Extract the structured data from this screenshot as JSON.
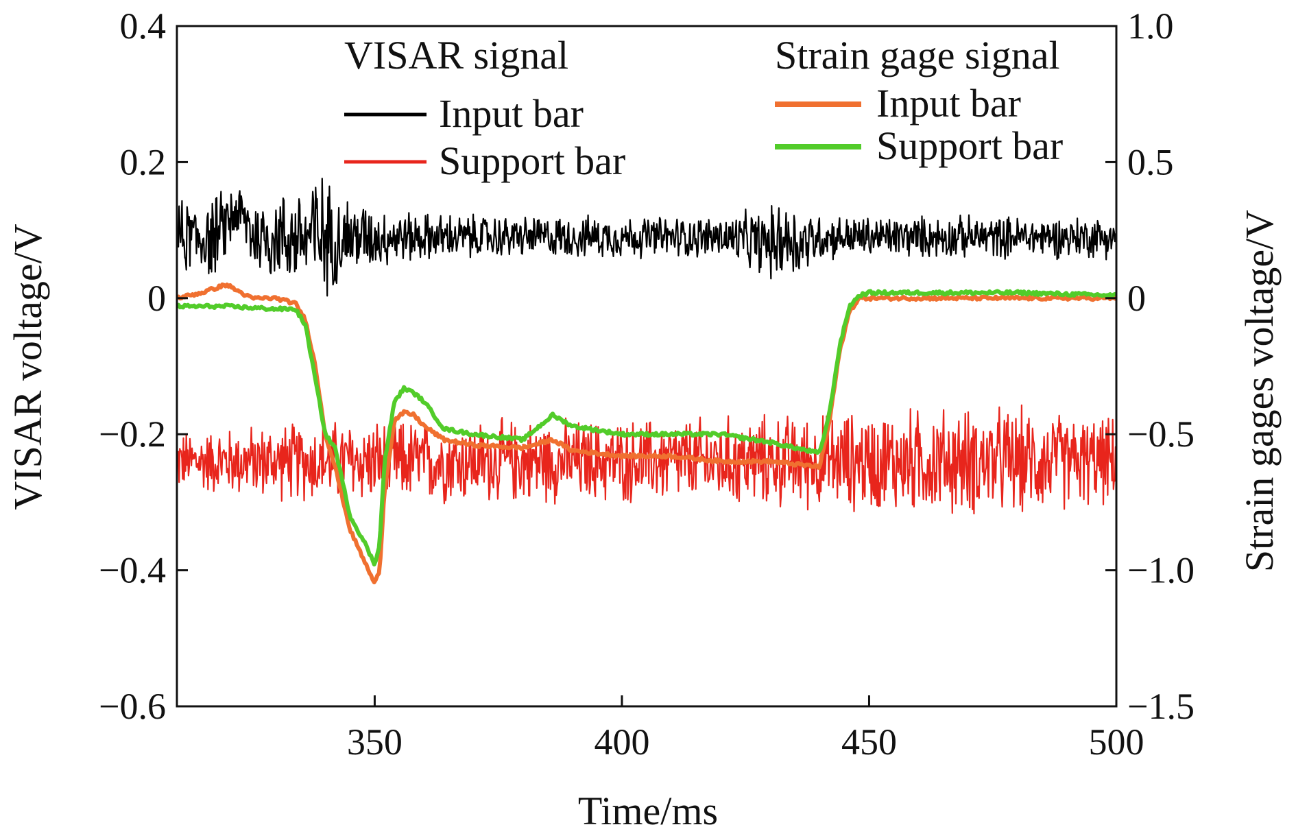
{
  "chart_data": {
    "type": "line",
    "xlabel": "Time/ms",
    "ylabel_left": "VISAR voltage/V",
    "ylabel_right": "Strain gages voltage/V",
    "xlim": [
      310,
      500
    ],
    "ylim_left": [
      -0.6,
      0.4
    ],
    "ylim_right": [
      -1.5,
      1.0
    ],
    "x_ticks": [
      350,
      400,
      450,
      500
    ],
    "x_tick_labels": [
      "350",
      "400",
      "450",
      "500"
    ],
    "y_left_ticks": [
      0.4,
      0.2,
      0,
      -0.2,
      -0.4,
      -0.6
    ],
    "y_left_tick_labels": [
      "0.4",
      "0.2",
      "0",
      "−0.2",
      "−0.4",
      "−0.6"
    ],
    "y_right_ticks": [
      1.0,
      0.5,
      0,
      -0.5,
      -1.0,
      -1.5
    ],
    "y_right_tick_labels": [
      "1.0",
      "0.5",
      "0",
      "−0.5",
      "−1.0",
      "−1.5"
    ],
    "grid": false,
    "legend_groups": [
      {
        "title": "VISAR signal",
        "entries": [
          "Input bar",
          "Support bar"
        ]
      },
      {
        "title": "Strain gage signal",
        "entries": [
          "Input bar",
          "Support bar"
        ]
      }
    ],
    "series": [
      {
        "name": "VISAR signal — Input bar",
        "axis": "left",
        "color": "#000000",
        "style": "noisy",
        "x": [
          310,
          318,
          322,
          326,
          334,
          338,
          342,
          350,
          360,
          380,
          400,
          420,
          430,
          433,
          436,
          440,
          445,
          460,
          480,
          500
        ],
        "center": [
          0.09,
          0.09,
          0.13,
          0.09,
          0.09,
          0.09,
          0.09,
          0.09,
          0.09,
          0.09,
          0.09,
          0.09,
          0.08,
          0.09,
          0.08,
          0.09,
          0.09,
          0.09,
          0.09,
          0.09
        ],
        "amplitude": [
          0.06,
          0.07,
          0.05,
          0.07,
          0.08,
          0.12,
          0.08,
          0.05,
          0.04,
          0.035,
          0.035,
          0.035,
          0.06,
          0.07,
          0.06,
          0.04,
          0.035,
          0.035,
          0.035,
          0.035
        ]
      },
      {
        "name": "VISAR signal — Support bar",
        "axis": "left",
        "color": "#e8251c",
        "style": "noisy",
        "x": [
          310,
          340,
          360,
          400,
          440,
          460,
          480,
          500
        ],
        "center": [
          -0.24,
          -0.24,
          -0.24,
          -0.24,
          -0.24,
          -0.24,
          -0.24,
          -0.24
        ],
        "amplitude": [
          0.05,
          0.07,
          0.07,
          0.07,
          0.08,
          0.09,
          0.09,
          0.07
        ]
      },
      {
        "name": "Strain gage signal — Input bar",
        "axis": "right",
        "color": "#f07030",
        "x": [
          310,
          315,
          320,
          325,
          330,
          334,
          336,
          338,
          340,
          342,
          345,
          348,
          350,
          351,
          352,
          354,
          356,
          358,
          360,
          364,
          370,
          380,
          386,
          390,
          400,
          410,
          420,
          430,
          440,
          442,
          444,
          446,
          448,
          450,
          460,
          480,
          500
        ],
        "y": [
          0.0,
          0.02,
          0.05,
          0.0,
          0.0,
          -0.02,
          -0.08,
          -0.25,
          -0.5,
          -0.62,
          -0.85,
          -0.97,
          -1.05,
          -1.0,
          -0.7,
          -0.45,
          -0.42,
          -0.43,
          -0.47,
          -0.52,
          -0.54,
          -0.55,
          -0.52,
          -0.56,
          -0.58,
          -0.58,
          -0.6,
          -0.6,
          -0.62,
          -0.45,
          -0.2,
          -0.05,
          0.0,
          0.0,
          0.0,
          0.0,
          0.0
        ]
      },
      {
        "name": "Strain gage signal — Support bar",
        "axis": "right",
        "color": "#52cc2a",
        "x": [
          310,
          320,
          330,
          334,
          336,
          338,
          340,
          342,
          345,
          348,
          350,
          351,
          352,
          354,
          356,
          358,
          360,
          364,
          370,
          380,
          386,
          390,
          400,
          410,
          420,
          430,
          440,
          442,
          444,
          446,
          448,
          450,
          460,
          480,
          500
        ],
        "y": [
          -0.03,
          -0.03,
          -0.04,
          -0.04,
          -0.1,
          -0.3,
          -0.5,
          -0.55,
          -0.8,
          -0.9,
          -0.98,
          -0.9,
          -0.6,
          -0.38,
          -0.33,
          -0.35,
          -0.38,
          -0.48,
          -0.5,
          -0.52,
          -0.43,
          -0.47,
          -0.5,
          -0.5,
          -0.5,
          -0.53,
          -0.57,
          -0.42,
          -0.18,
          -0.03,
          0.01,
          0.02,
          0.02,
          0.02,
          0.01
        ]
      }
    ]
  }
}
